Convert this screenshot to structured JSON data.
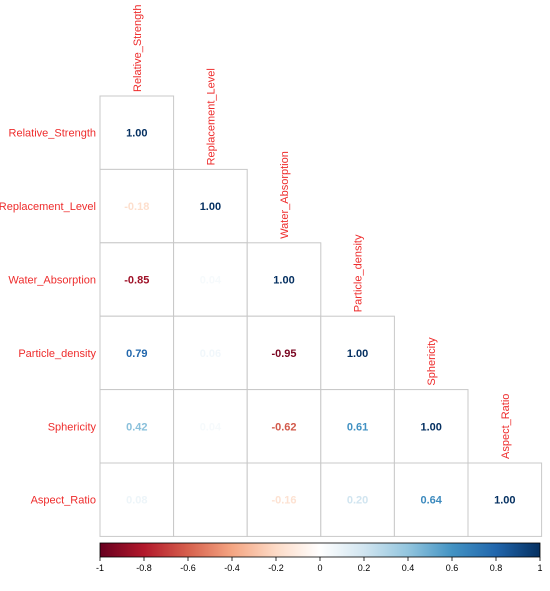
{
  "chart_data": {
    "type": "heatmap",
    "variables": [
      "Relative_Strength",
      "Replacement_Level",
      "Water_Absorption",
      "Particle_density",
      "Sphericity",
      "Aspect_Ratio"
    ],
    "matrix": [
      [
        1.0,
        null,
        null,
        null,
        null,
        null
      ],
      [
        -0.18,
        1.0,
        null,
        null,
        null,
        null
      ],
      [
        -0.85,
        0.04,
        1.0,
        null,
        null,
        null
      ],
      [
        0.79,
        0.06,
        -0.95,
        1.0,
        null,
        null
      ],
      [
        0.42,
        0.04,
        -0.62,
        0.61,
        1.0,
        null
      ],
      [
        0.08,
        null,
        -0.16,
        0.2,
        0.64,
        1.0
      ]
    ],
    "labels": [
      [
        "1.00",
        null,
        null,
        null,
        null,
        null
      ],
      [
        "-0.18",
        "1.00",
        null,
        null,
        null,
        null
      ],
      [
        "-0.85",
        "0.04",
        "1.00",
        null,
        null,
        null
      ],
      [
        "0.79",
        "0.06",
        "-0.95",
        "1.00",
        null,
        null
      ],
      [
        "0.42",
        "0.04",
        "-0.62",
        "0.61",
        "1.00",
        null
      ],
      [
        "0.08",
        "",
        "-0.16",
        "0.20",
        "0.64",
        "1.00"
      ]
    ],
    "triangle": "lower",
    "colorbar": {
      "range": [
        -1,
        1
      ],
      "ticks": [
        "-1",
        "-0.8",
        "-0.6",
        "-0.4",
        "-0.2",
        "0",
        "0.2",
        "0.4",
        "0.6",
        "0.8",
        "1"
      ],
      "stops": [
        "#67001F",
        "#B2182B",
        "#D6604D",
        "#F4A582",
        "#FDDBC7",
        "#FFFFFF",
        "#D1E5F0",
        "#92C5DE",
        "#4393C3",
        "#2166AC",
        "#053061"
      ],
      "position": "bottom"
    },
    "label_color": "#ee2c2c",
    "grid_color": "#c8c8c8"
  }
}
